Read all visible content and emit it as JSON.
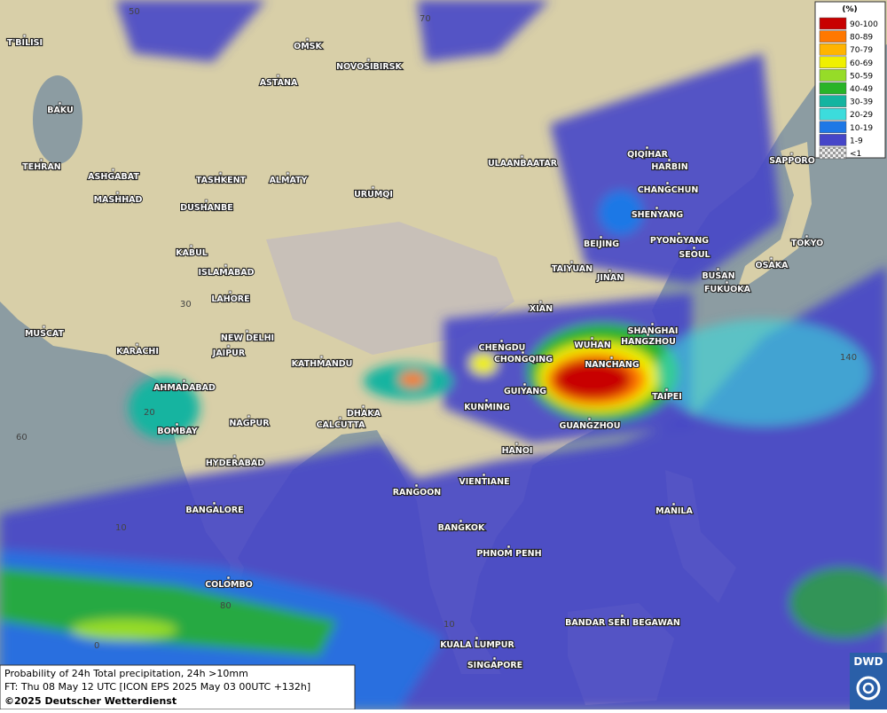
{
  "legend": {
    "title": "(%)",
    "entries": [
      {
        "label": "90-100",
        "color": "#c80000"
      },
      {
        "label": "80-89",
        "color": "#ff7800"
      },
      {
        "label": "70-79",
        "color": "#ffb400"
      },
      {
        "label": "60-69",
        "color": "#f0f000"
      },
      {
        "label": "50-59",
        "color": "#96dc28"
      },
      {
        "label": "40-49",
        "color": "#28b428"
      },
      {
        "label": "30-39",
        "color": "#14b4a0"
      },
      {
        "label": "20-29",
        "color": "#3cdcdc"
      },
      {
        "label": "10-19",
        "color": "#1e78e6"
      },
      {
        "label": "1-9",
        "color": "#4646c8"
      },
      {
        "label": "<1",
        "color": "#bbbbbb"
      }
    ]
  },
  "grid_labels": [
    50,
    70,
    30,
    60,
    20,
    10,
    80,
    0,
    10,
    140
  ],
  "cities": [
    "OMSK",
    "NOVOSIBIRSK",
    "ASTANA",
    "T'BILISI",
    "BAKU",
    "TEHRAN",
    "ASHGABAT",
    "MASHHAD",
    "TASHKENT",
    "ALMATY",
    "DUSHANBE",
    "URUMQI",
    "ULAANBAATAR",
    "QIQIHAR",
    "HARBIN",
    "CHANGCHUN",
    "SHENYANG",
    "SAPPORO",
    "BEIJING",
    "PYONGYANG",
    "SEOUL",
    "TOKYO",
    "OSAKA",
    "BUSAN",
    "FUKUOKA",
    "TAIYUAN",
    "JINAN",
    "KABUL",
    "ISLAMABAD",
    "LAHORE",
    "XIAN",
    "CHENGDU",
    "WUHAN",
    "SHANGHAI",
    "HANGZHOU",
    "CHONGQING",
    "NANCHANG",
    "MUSCAT",
    "KARACHI",
    "NEW DELHI",
    "JAIPUR",
    "KATHMANDU",
    "AHMADABAD",
    "GUIYANG",
    "TAIPEI",
    "KUNMING",
    "DHAKA",
    "CALCUTTA",
    "NAGPUR",
    "BOMBAY",
    "GUANGZHOU",
    "HANOI",
    "HYDERABAD",
    "RANGOON",
    "VIENTIANE",
    "MANILA",
    "BANGALORE",
    "BANGKOK",
    "PHNOM PENH",
    "COLOMBO",
    "BANDAR SERI BEGAWAN",
    "KUALA LUMPUR",
    "SINGAPORE"
  ],
  "footer": {
    "line1": "Probability of 24h Total precipitation, 24h >10mm",
    "line2": "FT: Thu 08 May 12 UTC [ICON EPS 2025 May 03 00UTC +132h]",
    "line3": "©2025 Deutscher Wetterdienst"
  },
  "logo": "DWD"
}
